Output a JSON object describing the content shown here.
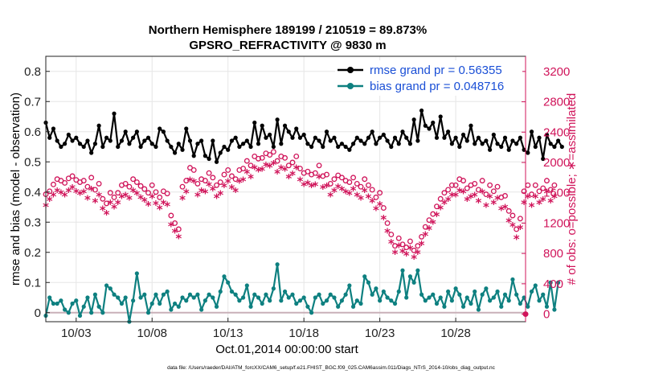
{
  "chart_data": {
    "type": "line",
    "title_line1": "Northern Hemisphere 189199 / 210519 = 89.873%",
    "title_line2": "GPSRO_REFRACTIVITY @ 9830 m",
    "xlabel": "Oct.01,2014 00:00:00 start",
    "ylabel_left": "rmse and bias (model - observation)",
    "ylabel_right": "# of obs: o=possible; ∗=assimilated",
    "footnote": "data file: /Users/raeder/DAI/ATM_forcXX/CAM6_setup/f.e21.FHIST_BGC.f09_025.CAM6assim.011/Diags_NTrS_2014-10/obs_diag_output.nc",
    "xlim": [
      1,
      32.6
    ],
    "ylim_left": [
      -0.03,
      0.85
    ],
    "ylim_right": [
      -100,
      3400
    ],
    "xticks": [
      3,
      8,
      13,
      18,
      23,
      28
    ],
    "xtick_labels": [
      "10/03",
      "10/08",
      "10/13",
      "10/18",
      "10/23",
      "10/28"
    ],
    "yticks_left": [
      0,
      0.1,
      0.2,
      0.3,
      0.4,
      0.5,
      0.6,
      0.7,
      0.8
    ],
    "ytick_labels_left": [
      "0",
      "0.1",
      "0.2",
      "0.3",
      "0.4",
      "0.5",
      "0.6",
      "0.7",
      "0.8"
    ],
    "yticks_right": [
      0,
      400,
      800,
      1200,
      1600,
      2000,
      2400,
      2800,
      3200
    ],
    "ytick_labels_right": [
      "0",
      "400",
      "800",
      "1200",
      "1600",
      "2000",
      "2400",
      "2800",
      "3200"
    ],
    "legend": [
      {
        "label": "rmse grand pr = 0.56355",
        "color": "#000000"
      },
      {
        "label": "bias grand pr = 0.048716",
        "color": "#0e8080"
      }
    ],
    "colors": {
      "rmse": "#000000",
      "bias": "#0e8080",
      "obs": "#d0145a",
      "zero_line": "#c9b0b8"
    },
    "x_start": 1.0,
    "x_step": 0.25,
    "series": [
      {
        "name": "rmse",
        "axis": "left",
        "values": [
          0.63,
          0.58,
          0.61,
          0.57,
          0.55,
          0.56,
          0.59,
          0.57,
          0.58,
          0.56,
          0.55,
          0.57,
          0.53,
          0.56,
          0.62,
          0.55,
          0.58,
          0.57,
          0.66,
          0.55,
          0.57,
          0.6,
          0.56,
          0.58,
          0.6,
          0.55,
          0.57,
          0.58,
          0.56,
          0.55,
          0.61,
          0.6,
          0.57,
          0.55,
          0.53,
          0.56,
          0.54,
          0.61,
          0.57,
          0.52,
          0.56,
          0.57,
          0.52,
          0.51,
          0.57,
          0.5,
          0.53,
          0.55,
          0.54,
          0.57,
          0.58,
          0.55,
          0.56,
          0.57,
          0.55,
          0.63,
          0.56,
          0.62,
          0.58,
          0.59,
          0.55,
          0.64,
          0.56,
          0.62,
          0.6,
          0.58,
          0.61,
          0.58,
          0.59,
          0.56,
          0.55,
          0.58,
          0.57,
          0.55,
          0.6,
          0.57,
          0.58,
          0.55,
          0.56,
          0.55,
          0.54,
          0.56,
          0.58,
          0.57,
          0.56,
          0.58,
          0.6,
          0.56,
          0.58,
          0.59,
          0.57,
          0.55,
          0.58,
          0.56,
          0.6,
          0.58,
          0.56,
          0.64,
          0.57,
          0.67,
          0.62,
          0.61,
          0.63,
          0.58,
          0.65,
          0.58,
          0.6,
          0.56,
          0.58,
          0.55,
          0.59,
          0.57,
          0.62,
          0.56,
          0.58,
          0.56,
          0.57,
          0.54,
          0.59,
          0.56,
          0.55,
          0.58,
          0.54,
          0.57,
          0.56,
          0.58,
          0.54,
          0.53,
          0.6,
          0.55,
          0.58,
          0.51,
          0.59,
          0.56,
          0.55,
          0.57,
          0.55
        ]
      },
      {
        "name": "bias",
        "axis": "left",
        "values": [
          -0.01,
          0.05,
          0.03,
          0.03,
          0.04,
          0.01,
          0.0,
          0.03,
          0.04,
          -0.01,
          0.02,
          0.05,
          0.0,
          0.06,
          0.02,
          0.0,
          0.09,
          0.08,
          0.06,
          0.05,
          0.03,
          0.05,
          -0.03,
          0.04,
          0.13,
          0.05,
          0.06,
          0.0,
          0.03,
          0.06,
          0.03,
          0.06,
          0.07,
          0.01,
          0.03,
          0.02,
          0.05,
          0.04,
          0.06,
          0.05,
          0.06,
          0.01,
          0.04,
          0.06,
          0.05,
          0.02,
          0.07,
          0.12,
          0.1,
          0.07,
          0.06,
          0.04,
          0.05,
          0.09,
          0.02,
          0.06,
          0.05,
          0.03,
          0.06,
          0.04,
          0.08,
          0.16,
          0.04,
          0.07,
          0.05,
          0.06,
          0.03,
          0.04,
          0.05,
          0.02,
          0.0,
          0.05,
          0.06,
          0.03,
          0.04,
          0.06,
          0.05,
          0.02,
          0.04,
          0.06,
          0.09,
          0.02,
          0.04,
          0.03,
          0.12,
          0.1,
          0.06,
          0.08,
          0.04,
          0.07,
          0.05,
          0.04,
          0.03,
          0.07,
          0.14,
          0.05,
          0.12,
          0.1,
          0.14,
          0.06,
          0.04,
          0.05,
          0.06,
          0.03,
          0.05,
          0.02,
          0.07,
          0.04,
          0.08,
          0.06,
          0.02,
          0.05,
          0.03,
          0.07,
          0.01,
          0.06,
          0.08,
          0.04,
          0.05,
          0.07,
          0.02,
          0.06,
          0.04,
          0.11,
          0.06,
          0.03,
          0.05,
          0.02,
          0.07,
          0.09,
          0.04,
          0.06,
          0.02,
          0.1,
          0.01,
          0.1
        ]
      },
      {
        "name": "obs_possible",
        "axis": "right",
        "values": [
          1580,
          1620,
          1710,
          1780,
          1760,
          1730,
          1790,
          1820,
          1770,
          1740,
          1760,
          1680,
          1800,
          1640,
          1720,
          1520,
          1460,
          1600,
          1540,
          1600,
          1700,
          1720,
          1680,
          1780,
          1740,
          1690,
          1650,
          1600,
          1700,
          1610,
          1540,
          1620,
          1590,
          1300,
          1200,
          1120,
          1680,
          1760,
          1930,
          1900,
          1720,
          1780,
          1760,
          1860,
          1800,
          1700,
          1740,
          1840,
          1900,
          1820,
          1780,
          1900,
          1920,
          2020,
          1960,
          2080,
          2050,
          2060,
          2120,
          2100,
          2140,
          2020,
          2080,
          2060,
          1960,
          2000,
          2080,
          1920,
          1860,
          1880,
          1840,
          1860,
          1960,
          1820,
          1840,
          1720,
          1780,
          1830,
          1800,
          1760,
          1740,
          1800,
          1720,
          1680,
          1780,
          1700,
          1640,
          1540,
          1600,
          1400,
          1200,
          1050,
          900,
          1000,
          920,
          880,
          960,
          840,
          900,
          1020,
          1150,
          1240,
          1320,
          1420,
          1520,
          1600,
          1640,
          1700,
          1700,
          1780,
          1760,
          1660,
          1700,
          1720,
          1640,
          1760,
          1580,
          1700,
          1620,
          1680,
          1540,
          1560,
          1360,
          1300,
          1120,
          1260,
          1620,
          1700,
          1580,
          1700,
          1620,
          1660,
          1760,
          1640,
          1700
        ]
      },
      {
        "name": "obs_assimilated",
        "axis": "right",
        "values": [
          1420,
          1500,
          1560,
          1620,
          1590,
          1560,
          1620,
          1660,
          1610,
          1580,
          1600,
          1520,
          1640,
          1480,
          1560,
          1380,
          1320,
          1460,
          1400,
          1460,
          1540,
          1560,
          1520,
          1620,
          1580,
          1530,
          1490,
          1440,
          1540,
          1450,
          1390,
          1460,
          1430,
          1170,
          1080,
          1010,
          1520,
          1600,
          1760,
          1740,
          1560,
          1620,
          1600,
          1700,
          1640,
          1540,
          1580,
          1680,
          1740,
          1660,
          1620,
          1740,
          1760,
          1860,
          1800,
          1920,
          1890,
          1900,
          1960,
          1940,
          1980,
          1860,
          1920,
          1900,
          1800,
          1840,
          1920,
          1760,
          1700,
          1720,
          1680,
          1700,
          1800,
          1660,
          1680,
          1560,
          1620,
          1670,
          1640,
          1600,
          1580,
          1640,
          1560,
          1520,
          1620,
          1540,
          1480,
          1380,
          1440,
          1260,
          1080,
          940,
          800,
          890,
          820,
          780,
          860,
          740,
          800,
          920,
          1040,
          1120,
          1200,
          1300,
          1390,
          1460,
          1500,
          1560,
          1560,
          1620,
          1600,
          1500,
          1540,
          1560,
          1480,
          1600,
          1420,
          1540,
          1460,
          1520,
          1380,
          1400,
          1220,
          1160,
          1000,
          1130,
          1460,
          1540,
          1420,
          1540,
          1460,
          1500,
          1600,
          1480,
          1540
        ]
      }
    ]
  }
}
